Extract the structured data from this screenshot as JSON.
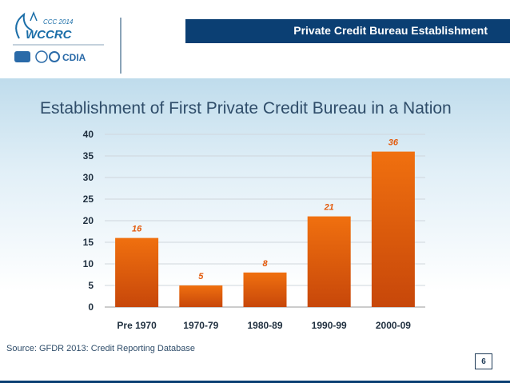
{
  "header": {
    "title": "Private Credit Bureau Establishment",
    "logo_main_text": "WCCRC",
    "logo_small_text": "CCC 2014",
    "logo_partner_text": "CDIA"
  },
  "colors": {
    "header_bar": "#0b3f73",
    "bar_fill": "#e35a0c",
    "label_color": "#e35a0c",
    "title_color": "#2f4d6a"
  },
  "chart_data": {
    "type": "bar",
    "title": "Establishment of First Private Credit Bureau in a Nation",
    "categories": [
      "Pre 1970",
      "1970-79",
      "1980-89",
      "1990-99",
      "2000-09"
    ],
    "values": [
      16,
      5,
      8,
      21,
      36
    ],
    "data_labels": [
      "16",
      "5",
      "8",
      "21",
      "36"
    ],
    "xlabel": "",
    "ylabel": "",
    "ylim": [
      0,
      40
    ],
    "yticks": [
      0,
      5,
      10,
      15,
      20,
      25,
      30,
      35,
      40
    ],
    "grid": true,
    "legend": "none"
  },
  "footer": {
    "source": "Source: GFDR 2013: Credit Reporting Database",
    "page_number": "6"
  }
}
